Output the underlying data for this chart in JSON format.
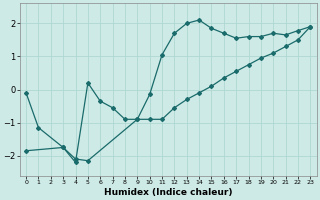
{
  "xlabel": "Humidex (Indice chaleur)",
  "xlim": [
    -0.5,
    23.5
  ],
  "ylim": [
    -2.6,
    2.6
  ],
  "yticks": [
    -2,
    -1,
    0,
    1,
    2
  ],
  "xticks": [
    0,
    1,
    2,
    3,
    4,
    5,
    6,
    7,
    8,
    9,
    10,
    11,
    12,
    13,
    14,
    15,
    16,
    17,
    18,
    19,
    20,
    21,
    22,
    23
  ],
  "xtick_labels": [
    "0",
    "1",
    "2",
    "3",
    "4",
    "5",
    "6",
    "7",
    "8",
    "9",
    "10",
    "11",
    "12",
    "13",
    "14",
    "15",
    "16",
    "17",
    "18",
    "19",
    "20",
    "21",
    "22",
    "23"
  ],
  "bg_color": "#ceeae6",
  "grid_color": "#afd8d3",
  "line_color": "#1a6b6b",
  "line1_x": [
    0,
    1,
    3,
    4,
    5,
    6,
    7,
    8,
    9,
    10,
    11,
    12,
    13,
    14,
    15,
    16,
    17,
    18,
    19,
    20,
    21,
    22,
    23
  ],
  "line1_y": [
    -0.1,
    -1.15,
    -1.75,
    -2.2,
    0.2,
    -0.35,
    -0.55,
    -0.9,
    -0.9,
    -0.15,
    1.05,
    1.7,
    2.0,
    2.1,
    1.85,
    1.7,
    1.55,
    1.6,
    1.6,
    1.7,
    1.65,
    1.78,
    1.9
  ],
  "line2_x": [
    0,
    3,
    4,
    5,
    9,
    10,
    11,
    12,
    13,
    14,
    15,
    16,
    17,
    18,
    19,
    20,
    21,
    22,
    23
  ],
  "line2_y": [
    -1.85,
    -1.75,
    -2.1,
    -2.15,
    -0.9,
    -0.9,
    -0.9,
    -0.55,
    -0.3,
    -0.1,
    0.1,
    0.35,
    0.55,
    0.75,
    0.95,
    1.1,
    1.3,
    1.5,
    1.9
  ],
  "marker": "D",
  "markersize": 2.0,
  "linewidth": 0.9
}
